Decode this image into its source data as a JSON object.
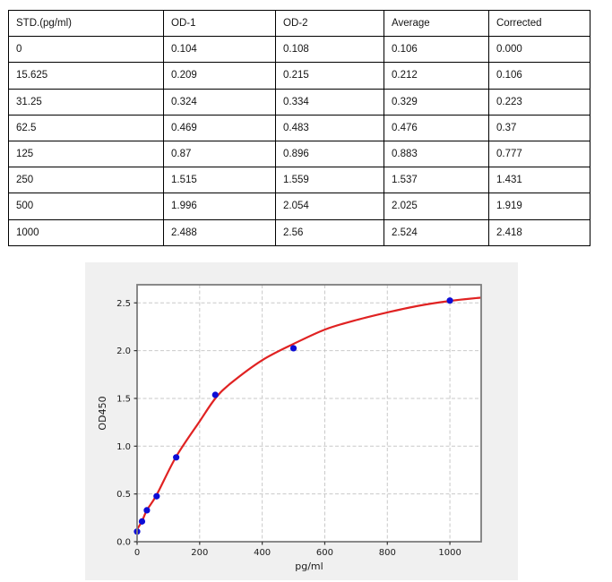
{
  "table": {
    "columns": [
      "STD.(pg/ml)",
      "OD-1",
      "OD-2",
      "Average",
      "Corrected"
    ],
    "rows": [
      [
        "0",
        "0.104",
        "0.108",
        "0.106",
        "0.000"
      ],
      [
        "15.625",
        "0.209",
        "0.215",
        "0.212",
        "0.106"
      ],
      [
        "31.25",
        "0.324",
        "0.334",
        "0.329",
        "0.223"
      ],
      [
        "62.5",
        "0.469",
        "0.483",
        "0.476",
        "0.37"
      ],
      [
        "125",
        "0.87",
        "0.896",
        "0.883",
        "0.777"
      ],
      [
        "250",
        "1.515",
        "1.559",
        "1.537",
        "1.431"
      ],
      [
        "500",
        "1.996",
        "2.054",
        "2.025",
        "1.919"
      ],
      [
        "1000",
        "2.488",
        "2.56",
        "2.524",
        "2.418"
      ]
    ]
  },
  "chart_data": {
    "type": "scatter",
    "title": "",
    "xlabel": "pg/ml",
    "ylabel": "OD450",
    "x": [
      0,
      15.625,
      31.25,
      62.5,
      125,
      250,
      500,
      1000
    ],
    "y": [
      0.106,
      0.212,
      0.329,
      0.476,
      0.883,
      1.537,
      2.025,
      2.524
    ],
    "series": [
      {
        "name": "standards",
        "style": "points",
        "color": "#0d0dd6"
      },
      {
        "name": "4PL fit curve",
        "style": "line",
        "color": "#e02222"
      }
    ],
    "fit_curve": [
      [
        0,
        0.13
      ],
      [
        15.625,
        0.215
      ],
      [
        31.25,
        0.33
      ],
      [
        62.5,
        0.49
      ],
      [
        125,
        0.89
      ],
      [
        200,
        1.26
      ],
      [
        250,
        1.5
      ],
      [
        300,
        1.66
      ],
      [
        400,
        1.9
      ],
      [
        500,
        2.07
      ],
      [
        600,
        2.22
      ],
      [
        700,
        2.32
      ],
      [
        800,
        2.4
      ],
      [
        900,
        2.47
      ],
      [
        1000,
        2.52
      ],
      [
        1100,
        2.555
      ]
    ],
    "xlim": [
      0,
      1100
    ],
    "ylim": [
      0,
      2.69
    ],
    "xticks": [
      0,
      200,
      400,
      600,
      800,
      1000
    ],
    "yticks": [
      0,
      0.5,
      1.0,
      1.5,
      2.0,
      2.5
    ],
    "xtick_labels": [
      "0",
      "200",
      "400",
      "600",
      "800",
      "1000"
    ],
    "ytick_labels": [
      "0.0",
      "0.5",
      "1.0",
      "1.5",
      "2.0",
      "2.5"
    ],
    "grid": "dashed",
    "legend": "none",
    "colors": {
      "figure_bg": "#f0f0f0",
      "plot_bg": "#ffffff",
      "spine": "#7d7d7d",
      "grid": "#c9c9c9",
      "tick_text": "#1a1a1a",
      "point": "#0d0dd6",
      "curve": "#e02222"
    }
  }
}
